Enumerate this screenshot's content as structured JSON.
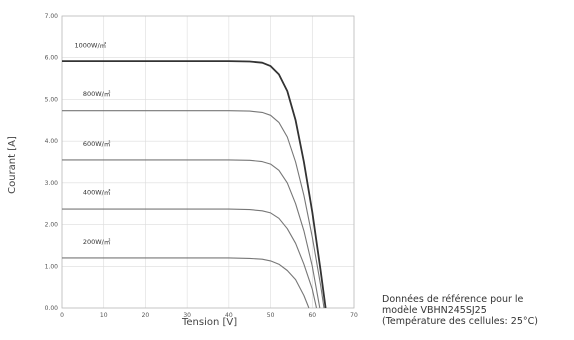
{
  "chart_data": {
    "type": "line",
    "xlabel": "Tension [V]",
    "ylabel": "Courant [A]",
    "xlim": [
      0,
      70
    ],
    "ylim": [
      0,
      7
    ],
    "x_ticks": [
      "0",
      "10",
      "20",
      "30",
      "40",
      "50",
      "60",
      "70"
    ],
    "y_ticks": [
      "0.00",
      "1.00",
      "2.00",
      "3.00",
      "4.00",
      "5.00",
      "6.00",
      "7.00"
    ],
    "grid": true,
    "series": [
      {
        "name": "1000W/㎡",
        "color": "#333333",
        "x": [
          0,
          40,
          45,
          48,
          50,
          52,
          54,
          56,
          58,
          60,
          62,
          63.2
        ],
        "y": [
          5.92,
          5.92,
          5.91,
          5.88,
          5.8,
          5.6,
          5.2,
          4.5,
          3.5,
          2.3,
          0.9,
          0.0
        ]
      },
      {
        "name": "800W/㎡",
        "color": "#777777",
        "x": [
          0,
          40,
          45,
          48,
          50,
          52,
          54,
          56,
          58,
          60,
          62,
          62.8
        ],
        "y": [
          4.73,
          4.73,
          4.72,
          4.69,
          4.62,
          4.45,
          4.1,
          3.5,
          2.7,
          1.7,
          0.55,
          0.0
        ]
      },
      {
        "name": "600W/㎡",
        "color": "#777777",
        "x": [
          0,
          40,
          45,
          48,
          50,
          52,
          54,
          56,
          58,
          60,
          61.8
        ],
        "y": [
          3.55,
          3.55,
          3.54,
          3.51,
          3.45,
          3.3,
          3.0,
          2.5,
          1.85,
          1.0,
          0.0
        ]
      },
      {
        "name": "400W/㎡",
        "color": "#777777",
        "x": [
          0,
          40,
          45,
          48,
          50,
          52,
          54,
          56,
          58,
          60,
          61.0
        ],
        "y": [
          2.37,
          2.37,
          2.36,
          2.33,
          2.28,
          2.15,
          1.9,
          1.55,
          1.05,
          0.45,
          0.0
        ]
      },
      {
        "name": "200W/㎡",
        "color": "#777777",
        "x": [
          0,
          40,
          45,
          48,
          50,
          52,
          54,
          56,
          58,
          59.2
        ],
        "y": [
          1.2,
          1.2,
          1.19,
          1.17,
          1.13,
          1.05,
          0.9,
          0.68,
          0.3,
          0.0
        ]
      }
    ],
    "curve_labels": [
      {
        "text": "1000W/㎡",
        "x": 3,
        "y": 6.25
      },
      {
        "text": "800W/㎡",
        "x": 5,
        "y": 5.08
      },
      {
        "text": "600W/㎡",
        "x": 5,
        "y": 3.88
      },
      {
        "text": "400W/㎡",
        "x": 5,
        "y": 2.72
      },
      {
        "text": "200W/㎡",
        "x": 5,
        "y": 1.53
      }
    ]
  },
  "note": {
    "line1": "Données de référence pour le",
    "line2": "modèle VBHN245SJ25",
    "line3": "(Température des cellules: 25°C)"
  }
}
